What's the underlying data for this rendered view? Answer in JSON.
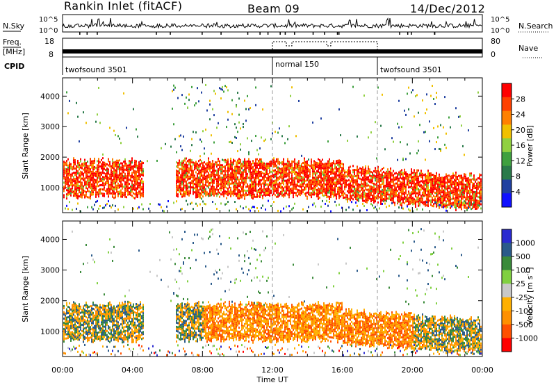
{
  "header": {
    "station": "Rankin Inlet (fitACF)",
    "beam": "Beam 09",
    "date": "14/Dec/2012"
  },
  "colors": {
    "power": [
      "#1010ff",
      "#2040a0",
      "#2a7a4a",
      "#3fa03f",
      "#90d040",
      "#f0c000",
      "#ff8000",
      "#ff4000",
      "#ff0000"
    ],
    "velocity": [
      "#ff0000",
      "#ff5000",
      "#ff9000",
      "#ffb000",
      "#c8c8c8",
      "#80d040",
      "#3a8a3a",
      "#2a5a8a",
      "#2a2ad0"
    ]
  },
  "chart_data": [
    {
      "type": "line",
      "panel": "noise",
      "ylabel": "N.Sky",
      "ylabel_right": "N.Search",
      "yticks_left": [
        "10^5",
        "10^0"
      ],
      "yticks_right": [
        "10^5",
        "10^0"
      ],
      "x_range": [
        "00:00",
        "24:00"
      ]
    },
    {
      "type": "line",
      "panel": "frequency",
      "ylabel": "Freq. [MHz]",
      "ylabel_right": "Nave",
      "yticks_left": [
        18,
        8
      ],
      "yticks_right": [
        80,
        0
      ],
      "cpid_label": "CPID",
      "cpid_segments": [
        {
          "name": "twofsound 3501",
          "start_hour": 0,
          "end_hour": 12
        },
        {
          "name": "normal 150",
          "start_hour": 12,
          "end_hour": 18
        },
        {
          "name": "twofsound 3501",
          "start_hour": 18,
          "end_hour": 24
        }
      ]
    },
    {
      "type": "heatmap",
      "panel": "power",
      "ylabel": "Slant Range [km]",
      "yticks": [
        1000,
        2000,
        3000,
        4000
      ],
      "ylim": [
        180,
        4600
      ],
      "colorbar_label": "Power [dB]",
      "colorbar_ticks": [
        4,
        8,
        12,
        16,
        20,
        24,
        28
      ],
      "colorbar_range": [
        0,
        32
      ],
      "main_band_km": [
        800,
        1800
      ],
      "gap_hours": [
        4.6,
        6.4
      ]
    },
    {
      "type": "heatmap",
      "panel": "velocity",
      "ylabel": "Slant Range [km]",
      "yticks": [
        1000,
        2000,
        3000,
        4000
      ],
      "ylim": [
        180,
        4600
      ],
      "colorbar_label": "Velocity [m s",
      "colorbar_label_sup": "-1",
      "colorbar_label_end": "]",
      "colorbar_ticks": [
        "-1000",
        "-500",
        "-100",
        "-25",
        "25",
        "100",
        "500",
        "1000"
      ],
      "main_band_km": [
        800,
        1800
      ],
      "gap_hours": [
        4.6,
        6.4
      ]
    }
  ],
  "xaxis": {
    "label": "Time UT",
    "ticks": [
      "00:00",
      "04:00",
      "08:00",
      "12:00",
      "16:00",
      "20:00",
      "00:00"
    ],
    "tick_hours": [
      0,
      4,
      8,
      12,
      16,
      20,
      24
    ]
  }
}
